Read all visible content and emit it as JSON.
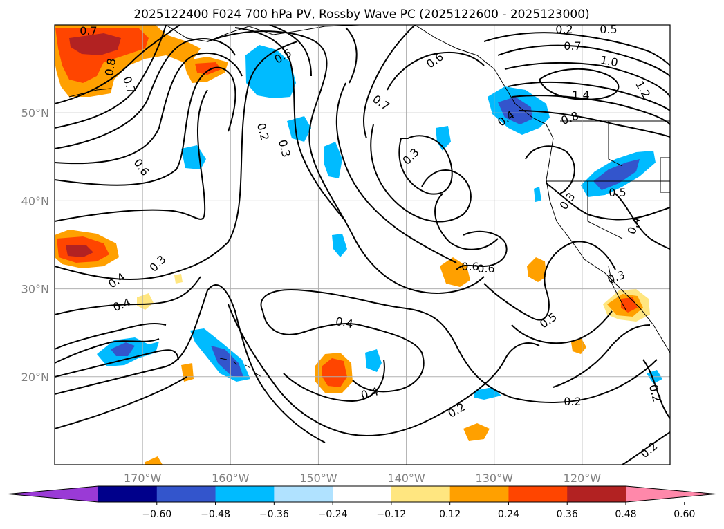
{
  "title": "2025122400 F024 700 hPa PV, Rossby Wave PC (2025122600 - 2025123000)",
  "map": {
    "projection": "lat-lon",
    "lon_range": [
      -180,
      -110
    ],
    "lat_range": [
      10,
      60
    ],
    "lat_ticks": [
      {
        "value": 20,
        "label": "20°N"
      },
      {
        "value": 30,
        "label": "30°N"
      },
      {
        "value": 40,
        "label": "40°N"
      },
      {
        "value": 50,
        "label": "50°N"
      }
    ],
    "lon_ticks": [
      {
        "value": -170,
        "label": "170°W"
      },
      {
        "value": -160,
        "label": "160°W"
      },
      {
        "value": -150,
        "label": "150°W"
      },
      {
        "value": -140,
        "label": "140°W"
      },
      {
        "value": -130,
        "label": "130°W"
      },
      {
        "value": -120,
        "label": "120°W"
      }
    ],
    "grid": true
  },
  "contour_labels": [
    "0.7",
    "0.8",
    "0.7",
    "0.6",
    "0.5",
    "0.6",
    "0.7",
    "1.0",
    "1.2",
    "1.4",
    "0.8",
    "0.5",
    "0.7",
    "0.2",
    "0.3",
    "0.3",
    "0.6",
    "0.4",
    "0.3",
    "0.5",
    "0.3",
    "0.4",
    "0.3",
    "0.4",
    "0.4",
    "0.6",
    "0.5",
    "0.4",
    "0.4",
    "0.2",
    "0.2",
    "0.2",
    "0.2",
    "0.2"
  ],
  "colorbar": {
    "extend": "both",
    "levels": [
      -0.72,
      -0.6,
      -0.48,
      -0.36,
      -0.24,
      -0.12,
      0.12,
      0.24,
      0.36,
      0.48,
      0.6,
      0.72
    ],
    "colors": [
      "#9a3ad6",
      "#00008b",
      "#3355cc",
      "#00bbff",
      "#b0e2ff",
      "#ffffff",
      "#ffe680",
      "#ffa000",
      "#ff4500",
      "#b22222",
      "#ff88aa"
    ],
    "tick_labels": [
      "−0.60",
      "−0.48",
      "−0.36",
      "−0.24",
      "−0.12",
      "0.12",
      "0.24",
      "0.36",
      "0.48",
      "0.60"
    ]
  }
}
